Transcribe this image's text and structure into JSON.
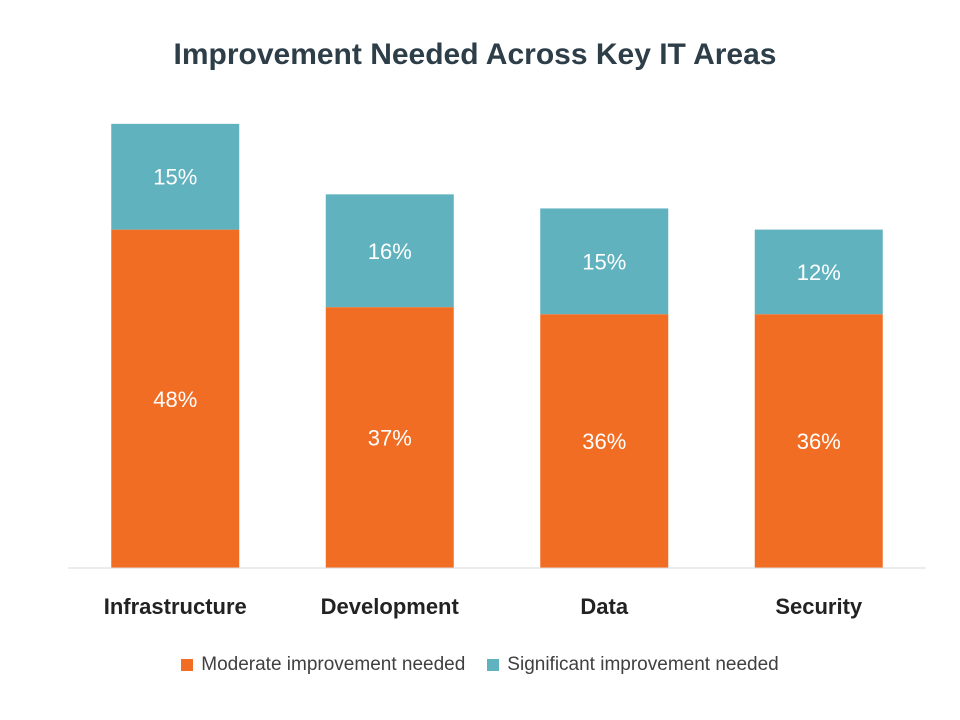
{
  "chart_data": {
    "type": "bar",
    "stacked": true,
    "title": "Improvement Needed Across Key IT Areas",
    "xlabel": "",
    "ylabel": "",
    "ylim": [
      0,
      63
    ],
    "grid": false,
    "legend_position": "bottom",
    "categories": [
      "Infrastructure",
      "Development",
      "Data",
      "Security"
    ],
    "series": [
      {
        "name": "Moderate improvement needed",
        "values": [
          48,
          37,
          36,
          36
        ],
        "labels": [
          "48%",
          "37%",
          "36%",
          "36%"
        ],
        "color": "#f26d24"
      },
      {
        "name": "Significant improvement needed",
        "values": [
          15,
          16,
          15,
          12
        ],
        "labels": [
          "15%",
          "16%",
          "15%",
          "12%"
        ],
        "color": "#5fb2be"
      }
    ]
  }
}
